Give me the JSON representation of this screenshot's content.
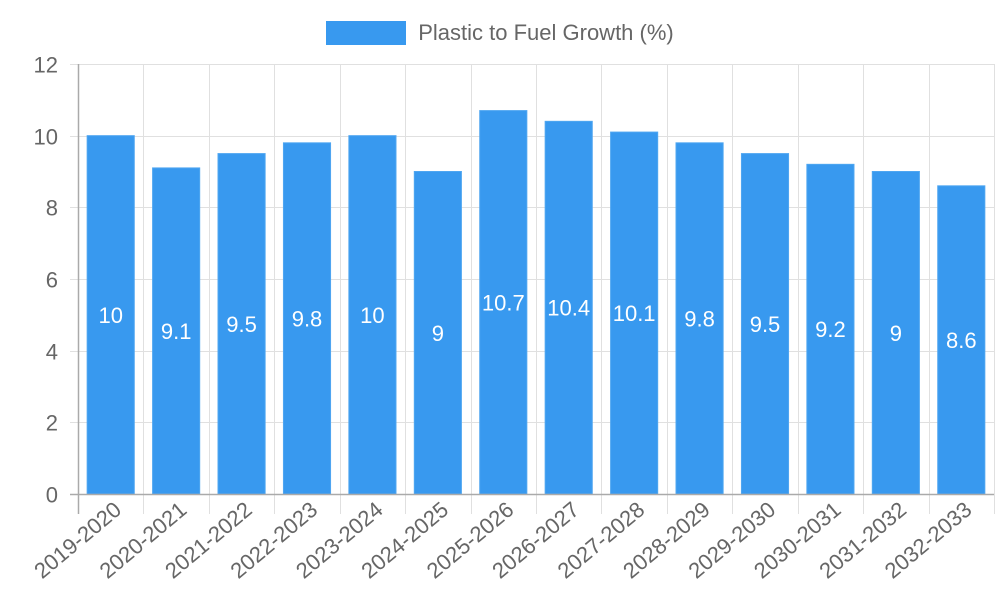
{
  "legend": {
    "label": "Plastic to Fuel Growth (%)",
    "color": "#3899ef"
  },
  "chart_data": {
    "type": "bar",
    "title": "",
    "xlabel": "",
    "ylabel": "",
    "ylim": [
      0,
      12
    ],
    "yticks": [
      0,
      2,
      4,
      6,
      8,
      10,
      12
    ],
    "grid": true,
    "legend_position": "top",
    "categories": [
      "2019-2020",
      "2020-2021",
      "2021-2022",
      "2022-2023",
      "2023-2024",
      "2024-2025",
      "2025-2026",
      "2026-2027",
      "2027-2028",
      "2028-2029",
      "2029-2030",
      "2030-2031",
      "2031-2032",
      "2032-2033"
    ],
    "series": [
      {
        "name": "Plastic to Fuel Growth (%)",
        "color": "#3899ef",
        "values": [
          10,
          9.1,
          9.5,
          9.8,
          10,
          9,
          10.7,
          10.4,
          10.1,
          9.8,
          9.5,
          9.2,
          9,
          8.6
        ]
      }
    ],
    "data_labels": true
  }
}
